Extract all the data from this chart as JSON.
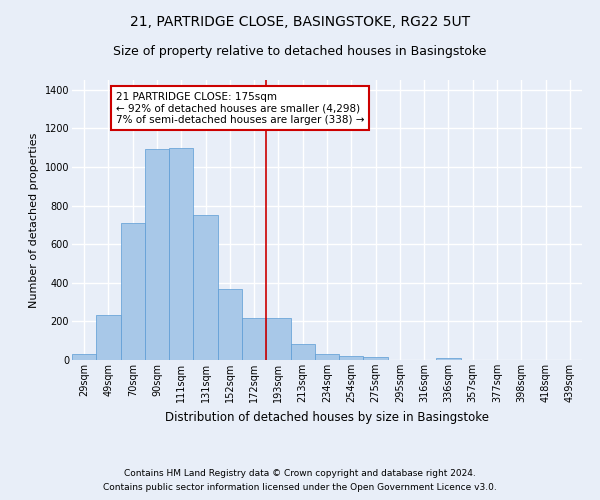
{
  "title": "21, PARTRIDGE CLOSE, BASINGSTOKE, RG22 5UT",
  "subtitle": "Size of property relative to detached houses in Basingstoke",
  "xlabel": "Distribution of detached houses by size in Basingstoke",
  "ylabel": "Number of detached properties",
  "categories": [
    "29sqm",
    "49sqm",
    "70sqm",
    "90sqm",
    "111sqm",
    "131sqm",
    "152sqm",
    "172sqm",
    "193sqm",
    "213sqm",
    "234sqm",
    "254sqm",
    "275sqm",
    "295sqm",
    "316sqm",
    "336sqm",
    "357sqm",
    "377sqm",
    "398sqm",
    "418sqm",
    "439sqm"
  ],
  "values": [
    30,
    235,
    710,
    1095,
    1100,
    750,
    370,
    220,
    220,
    85,
    30,
    20,
    18,
    0,
    0,
    10,
    0,
    0,
    0,
    0,
    0
  ],
  "bar_color": "#a8c8e8",
  "bar_edge_color": "#5b9bd5",
  "background_color": "#e8eef8",
  "grid_color": "#ffffff",
  "vline_x": 7.5,
  "vline_color": "#cc0000",
  "annotation_text": "21 PARTRIDGE CLOSE: 175sqm\n← 92% of detached houses are smaller (4,298)\n7% of semi-detached houses are larger (338) →",
  "annotation_box_color": "#ffffff",
  "annotation_box_edge_color": "#cc0000",
  "ylim": [
    0,
    1450
  ],
  "yticks": [
    0,
    200,
    400,
    600,
    800,
    1000,
    1200,
    1400
  ],
  "footer_line1": "Contains HM Land Registry data © Crown copyright and database right 2024.",
  "footer_line2": "Contains public sector information licensed under the Open Government Licence v3.0.",
  "title_fontsize": 10,
  "subtitle_fontsize": 9,
  "label_fontsize": 8,
  "tick_fontsize": 7,
  "annotation_fontsize": 7.5,
  "footer_fontsize": 6.5
}
